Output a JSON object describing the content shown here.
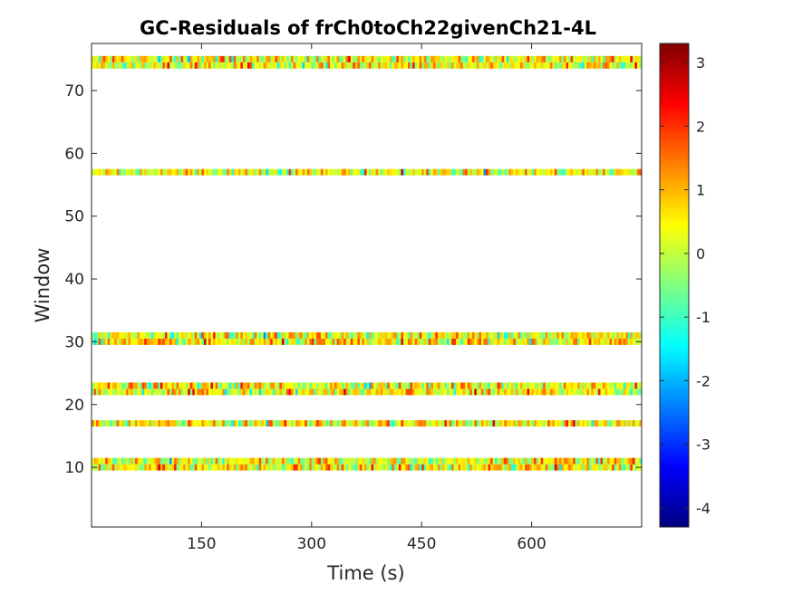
{
  "chart_data": {
    "type": "heatmap",
    "title": "GC-Residuals of frCh0toCh22givenCh21-4L",
    "xlabel": "Time (s)",
    "ylabel": "Window",
    "xlim": [
      0,
      750
    ],
    "ylim": [
      0.5,
      77.5
    ],
    "x_ticks": [
      150,
      300,
      450,
      600
    ],
    "x_tick_labels": [
      "150",
      "300",
      "450",
      "600"
    ],
    "y_ticks": [
      10,
      20,
      30,
      40,
      50,
      60,
      70
    ],
    "y_tick_labels": [
      "10",
      "20",
      "30",
      "40",
      "50",
      "60",
      "70"
    ],
    "colormap": "jet",
    "clim": [
      -4.3,
      3.3
    ],
    "colorbar_ticks": [
      -4,
      -3,
      -2,
      -1,
      0,
      1,
      2,
      3
    ],
    "colorbar_tick_labels": [
      "-4",
      "-3",
      "-2",
      "-1",
      "0",
      "1",
      "2",
      "3"
    ],
    "time_bins": 240,
    "windows_with_data": [
      10,
      11,
      17,
      22,
      23,
      30,
      31,
      57,
      74,
      75
    ],
    "value_mean_approx": 0.4,
    "value_std_approx": 0.8,
    "grid": false
  }
}
